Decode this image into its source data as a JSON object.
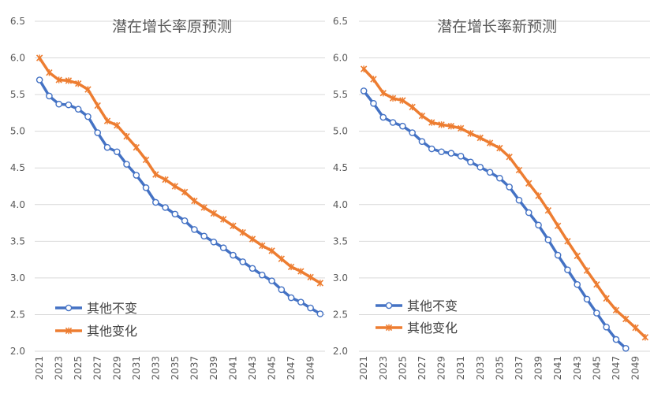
{
  "chart_data": [
    {
      "type": "line",
      "title": "潜在增长率原预测",
      "xlabel": "",
      "ylabel": "",
      "x": [
        2021,
        2022,
        2023,
        2024,
        2025,
        2026,
        2027,
        2028,
        2029,
        2030,
        2031,
        2032,
        2033,
        2034,
        2035,
        2036,
        2037,
        2038,
        2039,
        2040,
        2041,
        2042,
        2043,
        2044,
        2045,
        2046,
        2047,
        2048,
        2049,
        2050
      ],
      "x_tick_labels": [
        "2021",
        "2023",
        "2025",
        "2027",
        "2029",
        "2031",
        "2033",
        "2035",
        "2037",
        "2039",
        "2041",
        "2043",
        "2045",
        "2047",
        "2049"
      ],
      "ylim": [
        2.0,
        6.5
      ],
      "y_tick_labels": [
        "2.0",
        "2.5",
        "3.0",
        "3.5",
        "4.0",
        "4.5",
        "5.0",
        "5.5",
        "6.0",
        "6.5"
      ],
      "grid": true,
      "legend_position": "bottom-left",
      "series": [
        {
          "name": "其他不变",
          "color": "#4472c4",
          "marker": "circle",
          "values": [
            5.7,
            5.48,
            5.37,
            5.36,
            5.3,
            5.2,
            4.98,
            4.78,
            4.72,
            4.55,
            4.4,
            4.23,
            4.03,
            3.96,
            3.87,
            3.78,
            3.66,
            3.57,
            3.49,
            3.41,
            3.31,
            3.22,
            3.13,
            3.04,
            2.96,
            2.84,
            2.73,
            2.67,
            2.59,
            2.51
          ]
        },
        {
          "name": "其他变化",
          "color": "#ed7d31",
          "marker": "x",
          "values": [
            6.0,
            5.8,
            5.7,
            5.69,
            5.65,
            5.57,
            5.35,
            5.14,
            5.08,
            4.93,
            4.78,
            4.61,
            4.41,
            4.34,
            4.25,
            4.17,
            4.05,
            3.96,
            3.88,
            3.8,
            3.71,
            3.62,
            3.53,
            3.44,
            3.37,
            3.26,
            3.15,
            3.09,
            3.01,
            2.93
          ]
        }
      ]
    },
    {
      "type": "line",
      "title": "潜在增长率新预测",
      "xlabel": "",
      "ylabel": "",
      "x": [
        2021,
        2022,
        2023,
        2024,
        2025,
        2026,
        2027,
        2028,
        2029,
        2030,
        2031,
        2032,
        2033,
        2034,
        2035,
        2036,
        2037,
        2038,
        2039,
        2040,
        2041,
        2042,
        2043,
        2044,
        2045,
        2046,
        2047,
        2048,
        2049,
        2050
      ],
      "x_tick_labels": [
        "2021",
        "2023",
        "2025",
        "2027",
        "2029",
        "2031",
        "2033",
        "2035",
        "2037",
        "2039",
        "2041",
        "2043",
        "2045",
        "2047",
        "2049"
      ],
      "ylim": [
        2.0,
        6.5
      ],
      "y_tick_labels": [
        "2.0",
        "2.5",
        "3.0",
        "3.5",
        "4.0",
        "4.5",
        "5.0",
        "5.5",
        "6.0",
        "6.5"
      ],
      "grid": true,
      "legend_position": "bottom-left",
      "series": [
        {
          "name": "其他不变",
          "color": "#4472c4",
          "marker": "circle",
          "values": [
            5.55,
            5.38,
            5.19,
            5.12,
            5.07,
            4.98,
            4.86,
            4.76,
            4.72,
            4.7,
            4.66,
            4.58,
            4.51,
            4.44,
            4.36,
            4.24,
            4.06,
            3.89,
            3.72,
            3.52,
            3.31,
            3.11,
            2.91,
            2.71,
            2.52,
            2.33,
            2.16,
            2.04,
            null,
            null
          ]
        },
        {
          "name": "其他变化",
          "color": "#ed7d31",
          "marker": "x",
          "values": [
            5.85,
            5.71,
            5.52,
            5.45,
            5.42,
            5.33,
            5.21,
            5.12,
            5.09,
            5.07,
            5.04,
            4.97,
            4.91,
            4.84,
            4.77,
            4.65,
            4.47,
            4.29,
            4.12,
            3.92,
            3.71,
            3.5,
            3.3,
            3.1,
            2.91,
            2.72,
            2.56,
            2.44,
            2.32,
            2.19
          ]
        }
      ]
    }
  ]
}
